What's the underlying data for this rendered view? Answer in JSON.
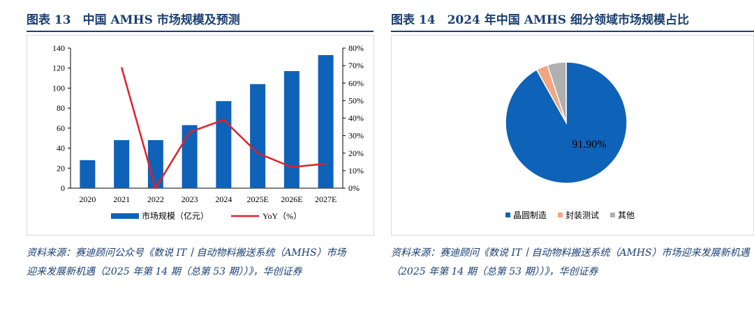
{
  "left_panel": {
    "title": "图表 13　中国 AMHS 市场规模及预测",
    "source": "资料来源：赛迪顾问公众号《数说 IT丨自动物料搬送系统（AMHS）市场迎来发展新机遇（2025 年第 14 期（总第 53 期））》，华创证券"
  },
  "right_panel": {
    "title": "图表 14　2024 年中国 AMHS 细分领域市场规模占比",
    "source": "资料来源：赛迪顾问《数说 IT丨自动物料搬送系统（AMHS）市场迎来发展新机遇（2025 年第 14 期（总第 53 期））》，华创证券"
  },
  "colors": {
    "title": "#1a3f73",
    "bar": "#0e62b8",
    "line": "#e0202a",
    "pie_main": "#0e62b8",
    "pie_test": "#f4a582",
    "pie_other": "#b0b0b0"
  },
  "chart_data": [
    {
      "type": "bar",
      "categories": [
        "2020",
        "2021",
        "2022",
        "2023",
        "2024",
        "2025E",
        "2026E",
        "2027E"
      ],
      "series": [
        {
          "name": "市场规模（亿元）",
          "type": "bar",
          "axis": "left",
          "values": [
            28,
            48,
            48,
            63,
            87,
            104,
            117,
            133
          ]
        },
        {
          "name": "YoY（%）",
          "type": "line",
          "axis": "right",
          "values": [
            null,
            69,
            0,
            32,
            39,
            20,
            12,
            14
          ]
        }
      ],
      "y_left": {
        "min": 0,
        "max": 140,
        "ticks": [
          0,
          20,
          40,
          60,
          80,
          100,
          120,
          140
        ]
      },
      "y_right": {
        "min": 0,
        "max": 80,
        "ticks": [
          "0%",
          "10%",
          "20%",
          "30%",
          "40%",
          "50%",
          "60%",
          "70%",
          "80%"
        ]
      },
      "legend_position": "bottom",
      "grid": false
    },
    {
      "type": "pie",
      "slices": [
        {
          "name": "晶圆制造",
          "value": 91.9,
          "label": "91.90%"
        },
        {
          "name": "封装测试",
          "value": 3.1,
          "label": ""
        },
        {
          "name": "其他",
          "value": 5.0,
          "label": ""
        }
      ],
      "legend_position": "bottom"
    }
  ]
}
